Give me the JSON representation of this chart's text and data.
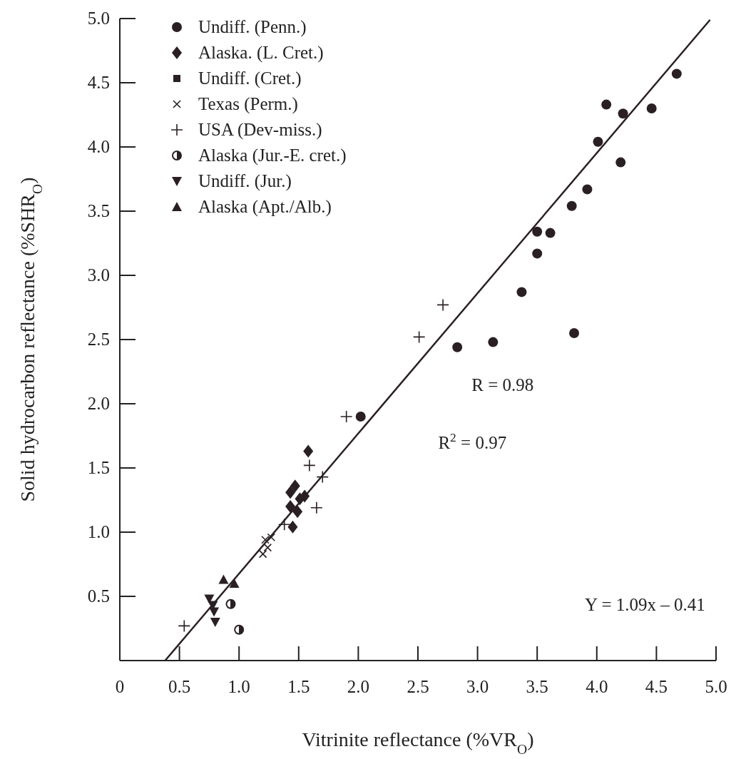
{
  "chart_data": {
    "type": "scatter",
    "xlabel": "Vitrinite reflectance (%VR$_{O}$)",
    "ylabel": "Solid hydrocarbon reflectance (%SHR$_{O}$)",
    "xlim": [
      0,
      5
    ],
    "ylim": [
      0,
      5
    ],
    "xticks": [
      {
        "value": 0,
        "label": "0"
      },
      0.5,
      {
        "value": 1,
        "label": "1.0"
      },
      1.5,
      {
        "value": 2,
        "label": "2.0"
      },
      2.5,
      {
        "value": 3,
        "label": "3.0"
      },
      3.5,
      {
        "value": 4,
        "label": "4.0"
      },
      4.5,
      {
        "value": 5,
        "label": "5.0"
      }
    ],
    "yticks": [
      0.5,
      {
        "value": 1,
        "label": "1.0"
      },
      1.5,
      {
        "value": 2,
        "label": "2.0"
      },
      2.5,
      {
        "value": 3,
        "label": "3.0"
      },
      3.5,
      {
        "value": 4,
        "label": "4.0"
      },
      4.5,
      {
        "value": 5,
        "label": "5.0"
      }
    ],
    "grid": false,
    "legend": "top left",
    "annotations": [
      "R = 0.98",
      "R$^{2}$ = 0.97",
      "Y = 1.09x – 0.41"
    ],
    "series": [
      {
        "name": "Undiff. (Penn.)",
        "color": "#2a2023",
        "marker": "circle",
        "x": [
          4.67,
          4.08,
          4.22,
          4.46,
          4.01,
          4.2,
          3.92,
          3.79,
          3.5,
          3.61,
          3.5,
          3.37,
          3.81,
          3.13,
          2.83,
          2.02
        ],
        "values": [
          4.57,
          4.33,
          4.26,
          4.3,
          4.04,
          3.88,
          3.67,
          3.54,
          3.34,
          3.33,
          3.17,
          2.87,
          2.55,
          2.48,
          2.44,
          1.9
        ]
      },
      {
        "name": "Alaska. (L. Cret.)",
        "color": "#2a2023",
        "marker": "diamond",
        "x": [
          1.58,
          1.47,
          1.43,
          1.55,
          1.51,
          1.43,
          1.45,
          1.49
        ],
        "values": [
          1.63,
          1.36,
          1.31,
          1.28,
          1.26,
          1.2,
          1.04,
          1.16
        ]
      },
      {
        "name": "Undiff. (Cret.)",
        "color": "#2a2023",
        "marker": "square"
      },
      {
        "name": "Texas (Perm.)",
        "color": "#2a2023",
        "marker": "x",
        "x": [
          1.27,
          1.22,
          1.2,
          1.24
        ],
        "values": [
          0.96,
          0.94,
          0.83,
          0.88
        ]
      },
      {
        "name": "USA (Dev-miss.)",
        "color": "#2a2023",
        "marker": "cross",
        "x": [
          2.71,
          2.51,
          1.9,
          1.59,
          1.7,
          1.65,
          1.38,
          0.54
        ],
        "values": [
          2.77,
          2.52,
          1.9,
          1.52,
          1.43,
          1.19,
          1.06,
          0.27
        ]
      },
      {
        "name": "Alaska (Jur.-E. cret.)",
        "color": "#2a2023",
        "marker": "half-circle",
        "x": [
          0.93,
          1.0
        ],
        "values": [
          0.44,
          0.24
        ]
      },
      {
        "name": "Undiff. (Jur.)",
        "color": "#2a2023",
        "marker": "triangle-down",
        "x": [
          0.75,
          0.78,
          0.79,
          0.8
        ],
        "values": [
          0.48,
          0.43,
          0.38,
          0.3
        ]
      },
      {
        "name": "Alaska (Apt./Alb.)",
        "color": "#2a2023",
        "marker": "triangle",
        "x": [
          0.87,
          0.96
        ],
        "values": [
          0.63,
          0.6
        ]
      },
      {
        "type": "line",
        "color": "#2a2023",
        "marker": "none",
        "line_style": "solid",
        "x": [
          0.38,
          4.95
        ],
        "values": [
          0,
          4.99
        ]
      }
    ]
  }
}
